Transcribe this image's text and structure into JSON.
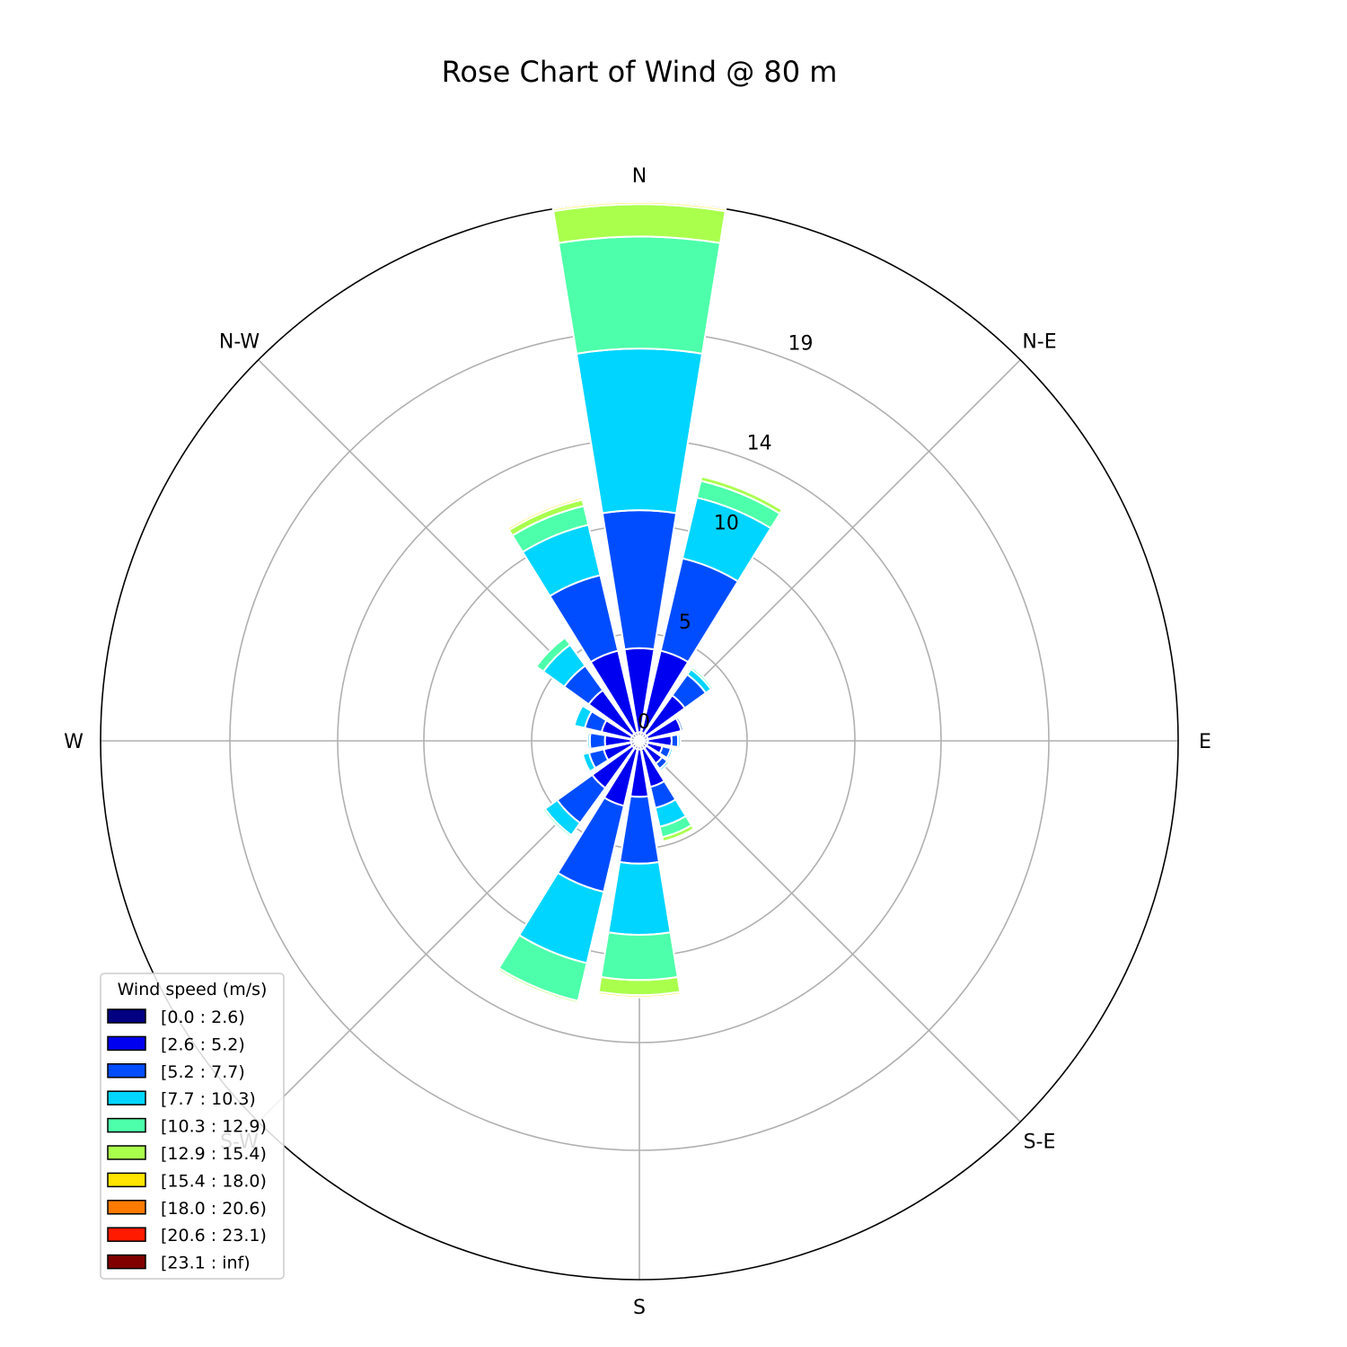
{
  "chart_data": {
    "type": "windrose",
    "title": "Rose Chart of Wind @ 80 m",
    "directions": [
      "N",
      "N-E",
      "E",
      "S-E",
      "S",
      "S-W",
      "W",
      "N-W"
    ],
    "radial_ticks": [
      0,
      5,
      10,
      14,
      19
    ],
    "rmax": 25,
    "sector_count": 16,
    "sector_angles_deg": [
      0,
      22.5,
      45,
      67.5,
      90,
      112.5,
      135,
      157.5,
      180,
      202.5,
      225,
      247.5,
      270,
      292.5,
      315,
      337.5
    ],
    "bins": [
      {
        "label": "[0.0 : 2.6)",
        "color": "#000080"
      },
      {
        "label": "[2.6 : 5.2)",
        "color": "#0000f1"
      },
      {
        "label": "[5.2 : 7.7)",
        "color": "#004dff"
      },
      {
        "label": "[7.7 : 10.3)",
        "color": "#00d5ff"
      },
      {
        "label": "[10.3 : 12.9)",
        "color": "#4dffaa"
      },
      {
        "label": "[12.9 : 15.4)",
        "color": "#aaff4d"
      },
      {
        "label": "[15.4 : 18.0)",
        "color": "#ffe500"
      },
      {
        "label": "[18.0 : 20.6)",
        "color": "#ff7a00"
      },
      {
        "label": "[20.6 : 23.1)",
        "color": "#ff1a00"
      },
      {
        "label": "[23.1 : inf)",
        "color": "#800000"
      }
    ],
    "cumulative": [
      [
        0.4,
        4.3,
        10.7,
        18.2,
        23.4,
        24.9,
        25.0,
        25.0,
        25.0,
        25.0
      ],
      [
        0.4,
        4.3,
        8.7,
        11.6,
        12.4,
        12.6,
        12.6,
        12.6,
        12.6,
        12.6
      ],
      [
        0.4,
        2.6,
        3.8,
        4.1,
        4.2,
        4.2,
        4.2,
        4.2,
        4.2,
        4.2
      ],
      [
        0.4,
        2.0,
        2.1,
        2.1,
        2.1,
        2.1,
        2.1,
        2.1,
        2.1,
        2.1
      ],
      [
        0.4,
        1.5,
        1.8,
        1.9,
        1.9,
        1.9,
        1.9,
        1.9,
        1.9,
        1.9
      ],
      [
        0.4,
        1.1,
        1.5,
        1.6,
        1.6,
        1.6,
        1.6,
        1.6,
        1.6,
        1.6
      ],
      [
        0.4,
        1.3,
        1.6,
        1.7,
        1.7,
        1.7,
        1.7,
        1.7,
        1.7,
        1.7
      ],
      [
        0.4,
        2.2,
        3.2,
        4.1,
        4.6,
        4.8,
        4.8,
        4.8,
        4.8,
        4.8
      ],
      [
        0.4,
        2.6,
        5.7,
        9.0,
        11.1,
        11.8,
        11.9,
        11.9,
        11.9,
        11.9
      ],
      [
        0.4,
        3.1,
        7.2,
        10.6,
        12.4,
        12.5,
        12.5,
        12.5,
        12.5,
        12.5
      ],
      [
        0.4,
        2.7,
        4.7,
        5.4,
        5.5,
        5.5,
        5.5,
        5.5,
        5.5,
        5.5
      ],
      [
        0.4,
        1.7,
        2.4,
        2.7,
        2.7,
        2.7,
        2.7,
        2.7,
        2.7,
        2.7
      ],
      [
        0.4,
        1.6,
        2.3,
        2.4,
        2.4,
        2.4,
        2.4,
        2.4,
        2.4,
        2.4
      ],
      [
        0.4,
        1.8,
        2.6,
        3.1,
        3.1,
        3.1,
        3.1,
        3.1,
        3.1,
        3.1
      ],
      [
        0.4,
        2.9,
        4.3,
        5.5,
        5.9,
        5.9,
        5.9,
        5.9,
        5.9,
        5.9
      ],
      [
        0.4,
        4.3,
        7.9,
        10.3,
        11.2,
        11.5,
        11.6,
        11.6,
        11.6,
        11.6
      ]
    ],
    "legend": {
      "title": "Wind speed (m/s)",
      "position": "lower-left"
    },
    "grid": true
  }
}
